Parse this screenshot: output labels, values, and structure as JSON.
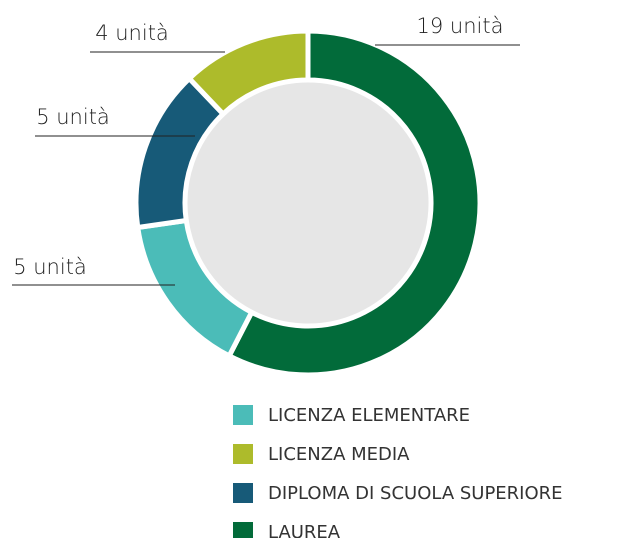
{
  "chart_data": {
    "type": "donut",
    "categories": [
      "LICENZA ELEMENTARE",
      "LICENZA MEDIA",
      "DIPLOMA DI SCUOLA SUPERIORE",
      "LAUREA"
    ],
    "values": [
      5,
      4,
      5,
      19
    ],
    "value_labels": [
      "5 unità",
      "4 unità",
      "5 unità",
      "19 unità"
    ],
    "colors": [
      "#4bbcb8",
      "#adbb2b",
      "#175a78",
      "#026b3a"
    ]
  }
}
